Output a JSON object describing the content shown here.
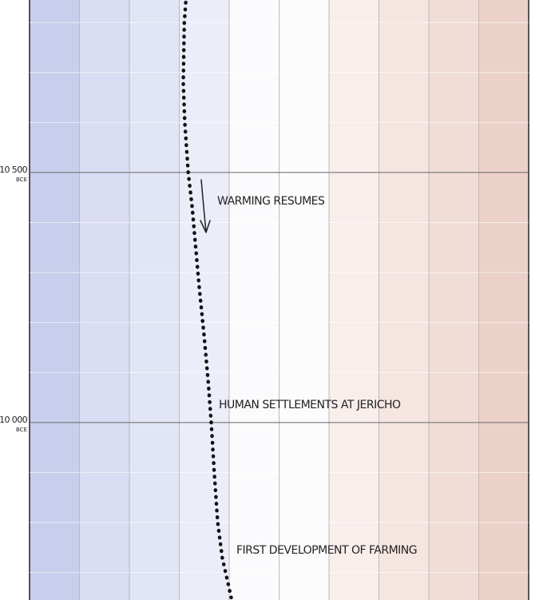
{
  "chart_data": {
    "type": "line",
    "orientation": "vertical",
    "x": [
      -10840,
      -10800,
      -10680,
      -10600,
      -10500,
      -10430,
      -10360,
      -10270,
      -10170,
      -10080,
      -10000,
      -9900,
      -9800,
      -9730,
      -9650
    ],
    "values": [
      -1.87,
      -1.9,
      -1.92,
      -1.89,
      -1.82,
      -1.74,
      -1.68,
      -1.6,
      -1.5,
      -1.42,
      -1.36,
      -1.3,
      -1.23,
      -1.14,
      -0.96
    ],
    "color": "#111111",
    "xlim": [
      -5,
      5
    ],
    "xticks": [
      -5,
      -4,
      -3,
      -2,
      -1,
      0,
      1,
      2,
      3,
      4,
      5
    ],
    "ylim": [
      -10845,
      -9645
    ],
    "yticks": [
      {
        "value": -10500,
        "label": "10 500"
      },
      {
        "value": -10000,
        "label": "10 000"
      }
    ],
    "y_unit_label": "BCE",
    "yminor": [
      -10800,
      -10700,
      -10600,
      -10400,
      -10300,
      -10200,
      -10100,
      -9900,
      -9800,
      -9700
    ],
    "band_colors": [
      "#c8cfec",
      "#d9dcf2",
      "#e2e5f5",
      "#ebedf8",
      "#fbfbfd",
      "#fdfcfd",
      "#f8eeec",
      "#f5e6e1",
      "#f1ddd6",
      "#ebd1c8"
    ],
    "grid": true,
    "annotations": [
      "WARMING RESUMES",
      "HUMAN SETTLEMENTS AT JERICHO",
      "FIRST DEVELOPMENT OF FARMING"
    ]
  }
}
